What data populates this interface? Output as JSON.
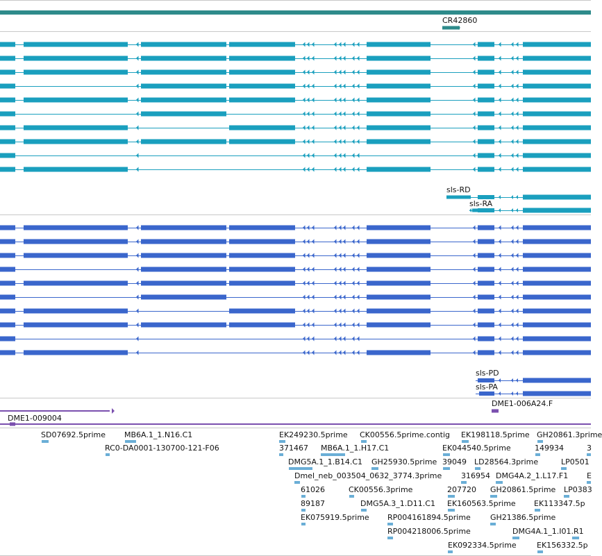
{
  "colors": {
    "ncrna": "#2e8b8b",
    "transcripts": "#1a9fbe",
    "cds": "#3a66cc",
    "prediction": "#7a4fae",
    "est": "#6aaed6",
    "divider": "#c8c8c8"
  },
  "tracks": {
    "ncrna": {
      "labels": [
        "CR42860"
      ]
    },
    "transcripts": {
      "labels": [
        "sls-RD",
        "sls-RA"
      ]
    },
    "cds": {
      "labels": [
        "sls-PD",
        "sls-PA"
      ]
    },
    "predictions": {
      "labels": [
        "DME1-009004",
        "DME1-006A24.F"
      ]
    },
    "ests": {
      "labels": [
        "SD07692.5prime",
        "MB6A.1_1.N16.C1",
        "RC0-DA0001-130700-121-F06",
        "EK249230.5prime",
        "CK00556.5prime.contig",
        "EK198118.5prime",
        "GH20861.3prime",
        "371467",
        "MB6A.1_1.H17.C1",
        "EK044540.5prime",
        "149934",
        "3",
        "DMG5A.1_1.B14.C1",
        "GH25930.5prime",
        "39049",
        "LD28564.3prime",
        "LP0501",
        "Dmel_neb_003504_0632_3774.3prime",
        "316954",
        "DMG4A.2_1.L17.F1",
        "E",
        "61026",
        "CK00556.3prime",
        "207720",
        "GH20861.5prime",
        "LP0383",
        "89187",
        "DMG5A.3_1.D11.C1",
        "EK160563.5prime",
        "EK113347.5p",
        "EK075919.5prime",
        "RP004161894.5prime",
        "GH21386.5prime",
        "RP004218006.5prime",
        "DMG4A.1_1.I01.R1",
        "EK092334.5prime",
        "EK156332.5p"
      ]
    }
  }
}
